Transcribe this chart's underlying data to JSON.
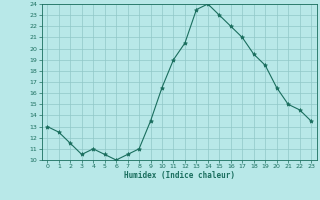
{
  "xlabel": "Humidex (Indice chaleur)",
  "x": [
    0,
    1,
    2,
    3,
    4,
    5,
    6,
    7,
    8,
    9,
    10,
    11,
    12,
    13,
    14,
    15,
    16,
    17,
    18,
    19,
    20,
    21,
    22,
    23
  ],
  "y": [
    13,
    12.5,
    11.5,
    10.5,
    11,
    10.5,
    10,
    10.5,
    11,
    13.5,
    16.5,
    19,
    20.5,
    23.5,
    24,
    23,
    22,
    21,
    19.5,
    18.5,
    16.5,
    15,
    14.5,
    13.5
  ],
  "line_color": "#1a6e5e",
  "marker": "*",
  "marker_size": 3,
  "bg_color": "#b8e8e8",
  "grid_color": "#90c8c8",
  "tick_color": "#1a6e5e",
  "label_color": "#1a6e5e",
  "ylim": [
    10,
    24
  ],
  "yticks": [
    10,
    11,
    12,
    13,
    14,
    15,
    16,
    17,
    18,
    19,
    20,
    21,
    22,
    23,
    24
  ],
  "xticks": [
    0,
    1,
    2,
    3,
    4,
    5,
    6,
    7,
    8,
    9,
    10,
    11,
    12,
    13,
    14,
    15,
    16,
    17,
    18,
    19,
    20,
    21,
    22,
    23
  ]
}
